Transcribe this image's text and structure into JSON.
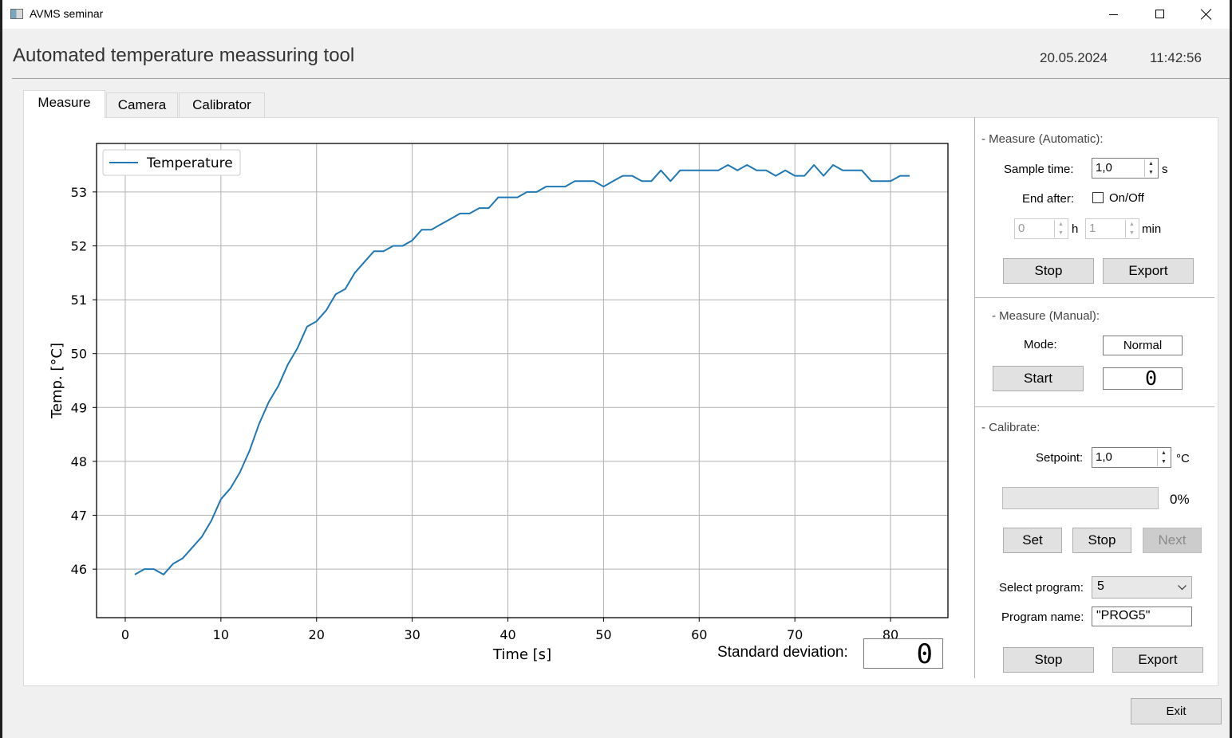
{
  "window": {
    "title": "AVMS seminar"
  },
  "header": {
    "title": "Automated temperature meassuring tool",
    "date": "20.05.2024",
    "time": "11:42:56"
  },
  "tabs": [
    {
      "label": "Measure",
      "active": true
    },
    {
      "label": "Camera",
      "active": false
    },
    {
      "label": "Calibrator",
      "active": false
    }
  ],
  "measure_auto": {
    "group_label": "- Measure (Automatic):",
    "sample_time_label": "Sample time:",
    "sample_time_value": "1,0",
    "sample_time_unit": "s",
    "end_after_label": "End after:",
    "onoff_label": "On/Off",
    "onoff_checked": false,
    "hours_value": "0",
    "hours_unit": "h",
    "minutes_value": "1",
    "minutes_unit": "min",
    "stop_label": "Stop",
    "export_label": "Export"
  },
  "measure_manual": {
    "group_label": "- Measure (Manual):",
    "mode_label": "Mode:",
    "mode_value": "Normal",
    "start_label": "Start",
    "counter_value": "0"
  },
  "calibrate": {
    "group_label": "- Calibrate:",
    "setpoint_label": "Setpoint:",
    "setpoint_value": "1,0",
    "setpoint_unit": "°C",
    "progress": 0,
    "progress_label": "0%",
    "set_label": "Set",
    "stop_label": "Stop",
    "next_label": "Next",
    "select_program_label": "Select program:",
    "select_program_value": "5",
    "program_name_label": "Program name:",
    "program_name_value": "\"PROG5\"",
    "stop2_label": "Stop",
    "export2_label": "Export"
  },
  "std_dev": {
    "label": "Standard deviation:",
    "value": "0"
  },
  "footer": {
    "exit_label": "Exit"
  },
  "chart_data": {
    "type": "line",
    "xlabel": "Time [s]",
    "ylabel": "Temp. [°C]",
    "xlim": [
      -3,
      86
    ],
    "ylim": [
      45.1,
      53.9
    ],
    "xticks": [
      0,
      10,
      20,
      30,
      40,
      50,
      60,
      70,
      80
    ],
    "yticks": [
      46,
      47,
      48,
      49,
      50,
      51,
      52,
      53
    ],
    "grid": true,
    "legend": "top-left",
    "series": [
      {
        "name": "Temperature",
        "color": "#1f77b4",
        "x": [
          1,
          2,
          3,
          4,
          5,
          6,
          7,
          8,
          9,
          10,
          11,
          12,
          13,
          14,
          15,
          16,
          17,
          18,
          19,
          20,
          21,
          22,
          23,
          24,
          25,
          26,
          27,
          28,
          29,
          30,
          31,
          32,
          33,
          34,
          35,
          36,
          37,
          38,
          39,
          40,
          41,
          42,
          43,
          44,
          45,
          46,
          47,
          48,
          49,
          50,
          51,
          52,
          53,
          54,
          55,
          56,
          57,
          58,
          59,
          60,
          61,
          62,
          63,
          64,
          65,
          66,
          67,
          68,
          69,
          70,
          71,
          72,
          73,
          74,
          75,
          76,
          77,
          78,
          79,
          80,
          81,
          82
        ],
        "y": [
          45.9,
          46.0,
          46.0,
          45.9,
          46.1,
          46.2,
          46.4,
          46.6,
          46.9,
          47.3,
          47.5,
          47.8,
          48.2,
          48.7,
          49.1,
          49.4,
          49.8,
          50.1,
          50.5,
          50.6,
          50.8,
          51.1,
          51.2,
          51.5,
          51.7,
          51.9,
          51.9,
          52.0,
          52.0,
          52.1,
          52.3,
          52.3,
          52.4,
          52.5,
          52.6,
          52.6,
          52.7,
          52.7,
          52.9,
          52.9,
          52.9,
          53.0,
          53.0,
          53.1,
          53.1,
          53.1,
          53.2,
          53.2,
          53.2,
          53.1,
          53.2,
          53.3,
          53.3,
          53.2,
          53.2,
          53.4,
          53.2,
          53.4,
          53.4,
          53.4,
          53.4,
          53.4,
          53.5,
          53.4,
          53.5,
          53.4,
          53.4,
          53.3,
          53.4,
          53.3,
          53.3,
          53.5,
          53.3,
          53.5,
          53.4,
          53.4,
          53.4,
          53.2,
          53.2,
          53.2,
          53.3,
          53.3
        ]
      }
    ]
  }
}
